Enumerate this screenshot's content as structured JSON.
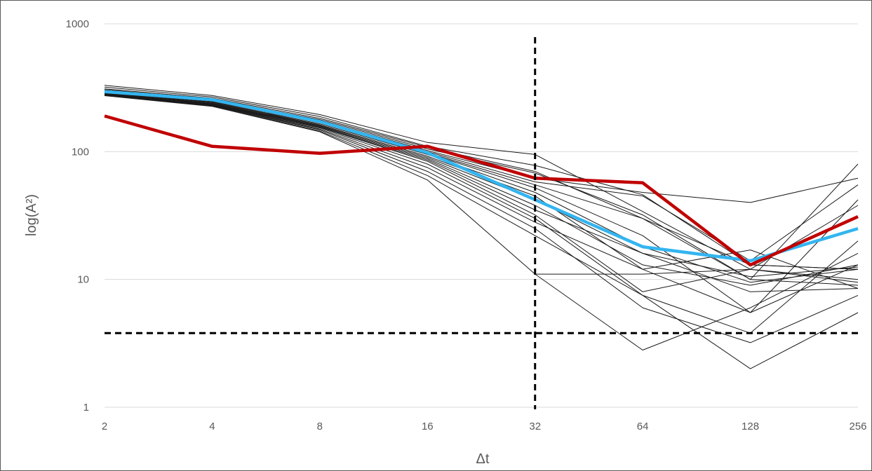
{
  "chart_data": {
    "type": "line",
    "title": "",
    "xlabel": "Δt",
    "ylabel": "log(A²)",
    "x": [
      2,
      4,
      8,
      16,
      32,
      64,
      128,
      256
    ],
    "x_tick_labels": [
      "2",
      "4",
      "8",
      "16",
      "32",
      "64",
      "128",
      "256"
    ],
    "x_scale": "log2",
    "y_scale": "log10",
    "ylim": [
      1,
      1000
    ],
    "y_tick_labels": [
      "1",
      "10",
      "100",
      "1000"
    ],
    "grid": "horizontal",
    "legend": "none",
    "reference_lines": [
      {
        "orientation": "vertical",
        "x": 32,
        "style": "dashed",
        "color": "#000000"
      },
      {
        "orientation": "horizontal",
        "y": 3.8,
        "style": "dashed",
        "color": "#000000"
      }
    ],
    "series": [
      {
        "values": [
          330,
          275,
          195,
          118,
          95,
          34,
          12,
          9.5
        ],
        "color": "#1a1a1a"
      },
      {
        "values": [
          320,
          268,
          188,
          110,
          78,
          46,
          13,
          12
        ],
        "color": "#1a1a1a"
      },
      {
        "values": [
          310,
          262,
          182,
          108,
          70,
          30,
          13,
          12
        ],
        "color": "#1a1a1a"
      },
      {
        "values": [
          305,
          258,
          178,
          105,
          68,
          32,
          10,
          9
        ],
        "color": "#1a1a1a"
      },
      {
        "values": [
          300,
          255,
          175,
          102,
          62,
          48,
          40,
          62
        ],
        "color": "#1a1a1a"
      },
      {
        "values": [
          295,
          252,
          172,
          100,
          58,
          45,
          14,
          55
        ],
        "color": "#1a1a1a"
      },
      {
        "values": [
          292,
          250,
          170,
          98,
          55,
          30,
          10,
          80
        ],
        "color": "#1a1a1a"
      },
      {
        "values": [
          290,
          248,
          168,
          97,
          52,
          22,
          5.5,
          42
        ],
        "color": "#1a1a1a"
      },
      {
        "values": [
          288,
          245,
          165,
          95,
          48,
          18,
          9.5,
          12
        ],
        "color": "#1a1a1a"
      },
      {
        "values": [
          285,
          243,
          162,
          92,
          45,
          12,
          17,
          8.5
        ],
        "color": "#1a1a1a"
      },
      {
        "values": [
          283,
          240,
          160,
          90,
          42,
          16,
          8,
          8.5
        ],
        "color": "#1a1a1a"
      },
      {
        "values": [
          281,
          238,
          158,
          88,
          38,
          13,
          9,
          13
        ],
        "color": "#1a1a1a"
      },
      {
        "values": [
          280,
          236,
          156,
          86,
          35,
          16,
          10.5,
          12.5
        ],
        "color": "#1a1a1a"
      },
      {
        "values": [
          279,
          235,
          155,
          84,
          32,
          8,
          12,
          38
        ],
        "color": "#1a1a1a"
      },
      {
        "values": [
          278,
          233,
          153,
          80,
          30,
          7.5,
          3.8,
          20
        ],
        "color": "#1a1a1a"
      },
      {
        "values": [
          277,
          232,
          150,
          75,
          28,
          12,
          5.5,
          13
        ],
        "color": "#1a1a1a"
      },
      {
        "values": [
          276,
          230,
          148,
          70,
          25,
          6,
          3.2,
          7.5
        ],
        "color": "#1a1a1a"
      },
      {
        "values": [
          275,
          228,
          145,
          65,
          22,
          7.5,
          2,
          5.5
        ],
        "color": "#1a1a1a"
      },
      {
        "values": [
          274,
          226,
          143,
          60,
          11,
          2.8,
          6,
          16
        ],
        "color": "#1a1a1a"
      },
      {
        "values": [
          null,
          null,
          null,
          null,
          11,
          11,
          12,
          10
        ],
        "color": "#1a1a1a"
      },
      {
        "values": [
          295,
          255,
          172,
          98,
          42,
          18,
          14,
          25
        ],
        "color": "#33b5f0"
      },
      {
        "values": [
          190,
          110,
          97,
          110,
          62,
          57,
          13,
          31
        ],
        "color": "#c00000"
      }
    ]
  }
}
